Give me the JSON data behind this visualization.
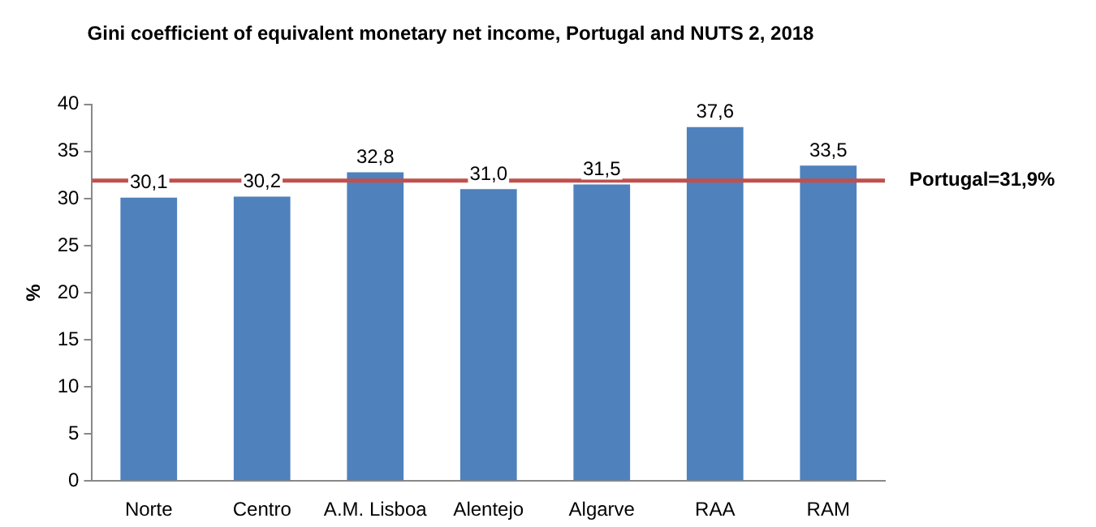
{
  "chart_data": {
    "type": "bar",
    "title": "Gini coefficient of equivalent monetary net income, Portugal and NUTS 2, 2018",
    "ylabel": "%",
    "categories": [
      "Norte",
      "Centro",
      "A.M. Lisboa",
      "Alentejo",
      "Algarve",
      "RAA",
      "RAM"
    ],
    "values": [
      30.1,
      30.2,
      32.8,
      31.0,
      31.5,
      37.6,
      33.5
    ],
    "value_labels": [
      "30,1",
      "30,2",
      "32,8",
      "31,0",
      "31,5",
      "37,6",
      "33,5"
    ],
    "color": "#4f81bd",
    "ylim": [
      0,
      40
    ],
    "yticks": [
      0,
      5,
      10,
      15,
      20,
      25,
      30,
      35,
      40
    ],
    "grid": false,
    "legend": false,
    "ref_lines": [
      {
        "axis": "y",
        "value": 31.9,
        "label": "Portugal=31,9%",
        "color": "#c0504d"
      }
    ]
  }
}
